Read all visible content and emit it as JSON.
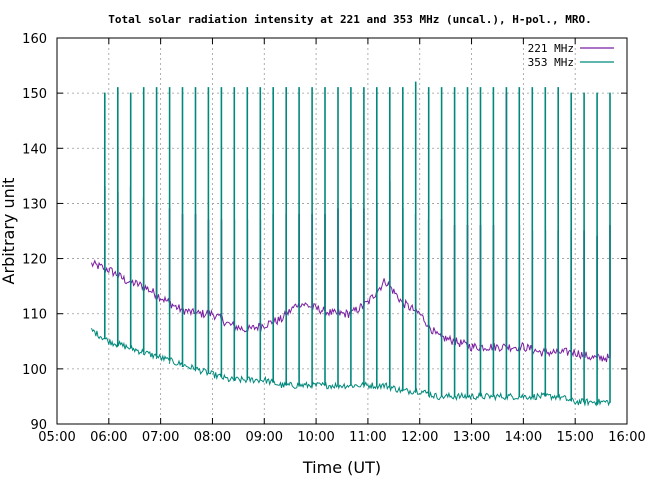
{
  "chart_data": {
    "type": "line",
    "title": "Total solar radiation intensity at 221 and 353 MHz (uncal.), H-pol., MRO.",
    "xlabel": "Time (UT)",
    "ylabel": "Arbitrary unit",
    "xlim": [
      "05:00",
      "16:00"
    ],
    "ylim": [
      90,
      160
    ],
    "x_ticks": [
      "05:00",
      "06:00",
      "07:00",
      "08:00",
      "09:00",
      "10:00",
      "11:00",
      "12:00",
      "13:00",
      "14:00",
      "15:00",
      "16:00"
    ],
    "y_ticks": [
      90,
      100,
      110,
      120,
      130,
      140,
      150,
      160
    ],
    "grid": true,
    "legend_position": "top-right",
    "series": [
      {
        "name": "221 MHz",
        "color": "#7b1fa2",
        "baseline": {
          "x": [
            "05:40",
            "06:00",
            "06:20",
            "06:40",
            "07:00",
            "07:20",
            "07:40",
            "08:00",
            "08:20",
            "08:40",
            "09:00",
            "09:20",
            "09:40",
            "10:00",
            "10:20",
            "10:40",
            "11:00",
            "11:20",
            "11:40",
            "12:00",
            "12:20",
            "12:40",
            "13:00",
            "13:20",
            "13:40",
            "14:00",
            "14:20",
            "14:40",
            "15:00",
            "15:20",
            "15:40"
          ],
          "y": [
            119,
            118,
            116,
            115,
            113,
            111,
            110,
            110,
            108,
            107,
            108,
            109,
            112,
            111,
            110,
            110,
            112,
            116,
            112,
            110,
            106,
            105,
            104,
            104,
            104,
            104,
            103,
            103,
            103,
            102,
            102
          ]
        },
        "calibration_spikes": {
          "x": [
            "05:55",
            "06:10",
            "06:25",
            "06:40",
            "06:55",
            "07:10",
            "07:25",
            "07:40",
            "07:55",
            "08:10",
            "08:25",
            "08:40",
            "08:55",
            "09:10",
            "09:25",
            "09:40",
            "09:55",
            "10:10",
            "10:25",
            "10:40",
            "10:55",
            "11:10",
            "11:25",
            "11:40",
            "11:55",
            "12:10",
            "12:25",
            "12:40",
            "12:55",
            "13:10",
            "13:25",
            "13:40",
            "13:55",
            "14:10",
            "14:25",
            "14:40",
            "14:55",
            "15:10",
            "15:25",
            "15:40"
          ],
          "y": [
            133,
            132,
            133,
            131,
            130,
            129,
            128,
            128,
            127,
            127,
            127,
            127,
            127,
            128,
            128,
            128,
            128,
            128,
            129,
            129,
            129,
            130,
            134,
            129,
            128,
            127,
            127,
            126,
            126,
            126,
            126,
            150,
            126,
            125,
            125,
            125,
            125,
            125,
            124,
            126
          ]
        }
      },
      {
        "name": "353 MHz",
        "color": "#00897b",
        "baseline": {
          "x": [
            "05:40",
            "06:00",
            "06:20",
            "06:40",
            "07:00",
            "07:20",
            "07:40",
            "08:00",
            "08:20",
            "08:40",
            "09:00",
            "09:20",
            "09:40",
            "10:00",
            "10:20",
            "10:40",
            "11:00",
            "11:20",
            "11:40",
            "12:00",
            "12:20",
            "12:40",
            "13:00",
            "13:20",
            "13:40",
            "14:00",
            "14:20",
            "14:40",
            "15:00",
            "15:20",
            "15:40"
          ],
          "y": [
            107,
            105,
            104,
            103,
            102,
            101,
            100,
            99,
            98,
            98,
            98,
            97,
            97,
            97,
            97,
            97,
            97,
            97,
            96,
            96,
            95,
            95,
            95,
            95,
            95,
            95,
            95,
            95,
            94,
            94,
            94
          ]
        },
        "calibration_spikes": {
          "x": [
            "05:55",
            "06:10",
            "06:25",
            "06:40",
            "06:55",
            "07:10",
            "07:25",
            "07:40",
            "07:55",
            "08:10",
            "08:25",
            "08:40",
            "08:55",
            "09:10",
            "09:25",
            "09:40",
            "09:55",
            "10:10",
            "10:25",
            "10:40",
            "10:55",
            "11:10",
            "11:25",
            "11:40",
            "11:55",
            "12:10",
            "12:25",
            "12:40",
            "12:55",
            "13:10",
            "13:25",
            "13:40",
            "13:55",
            "14:10",
            "14:25",
            "14:40",
            "14:55",
            "15:10",
            "15:25",
            "15:40"
          ],
          "y": [
            150,
            151,
            150,
            151,
            151,
            151,
            151,
            151,
            151,
            151,
            151,
            151,
            151,
            151,
            151,
            151,
            151,
            151,
            151,
            151,
            151,
            151,
            151,
            151,
            152,
            151,
            151,
            151,
            151,
            151,
            151,
            151,
            151,
            151,
            151,
            151,
            150,
            150,
            150,
            150
          ]
        }
      }
    ]
  }
}
